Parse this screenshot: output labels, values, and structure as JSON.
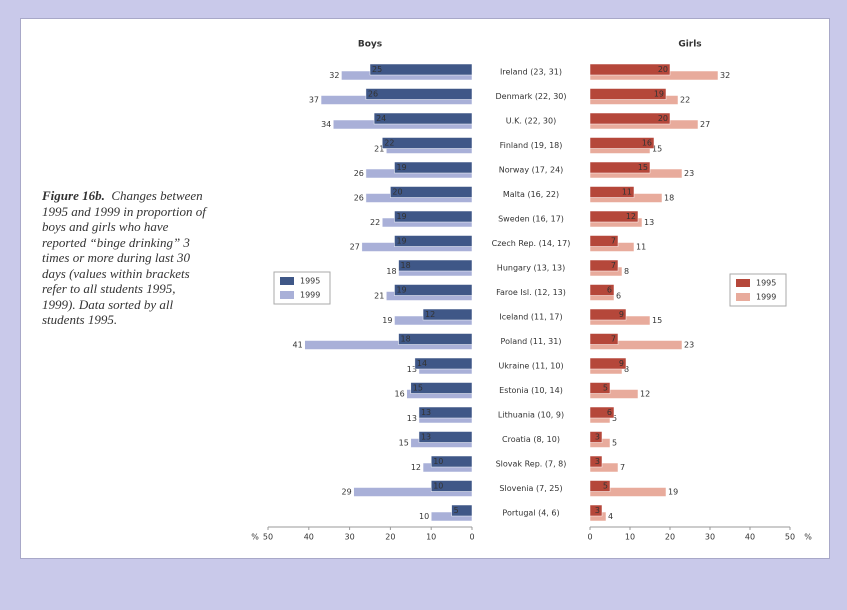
{
  "chart_data": {
    "type": "butterfly_bar",
    "caption_lead": "Figure 16b.",
    "caption": "Changes between 1995 and 1999 in proportion of boys and girls who have reported “binge drinking” 3 times or more during last 30 days (values within brackets refer to all students 1995, 1999). Data sorted by all students 1995.",
    "unit": "%",
    "categories": [
      "Ireland (23, 31)",
      "Denmark (22, 30)",
      "U.K. (22, 30)",
      "Finland (19, 18)",
      "Norway (17, 24)",
      "Malta (16, 22)",
      "Sweden (16, 17)",
      "Czech Rep. (14, 17)",
      "Hungary (13, 13)",
      "Faroe Isl. (12, 13)",
      "Iceland (11, 17)",
      "Poland (11, 31)",
      "Ukraine (11, 10)",
      "Estonia (10, 14)",
      "Lithuania (10, 9)",
      "Croatia (8, 10)",
      "Slovak Rep. (7, 8)",
      "Slovenia (7, 25)",
      "Portugal (4, 6)"
    ],
    "left": {
      "title": "Boys",
      "xlim": [
        0,
        50
      ],
      "xticks": [
        0,
        10,
        20,
        30,
        40,
        50
      ],
      "series": [
        {
          "name": "1995",
          "color": "#3f5787",
          "values": [
            25,
            26,
            24,
            22,
            19,
            20,
            19,
            19,
            18,
            19,
            12,
            18,
            14,
            15,
            13,
            13,
            10,
            10,
            5
          ]
        },
        {
          "name": "1999",
          "color": "#a9b0d8",
          "values": [
            32,
            37,
            34,
            21,
            26,
            26,
            22,
            27,
            18,
            21,
            19,
            41,
            13,
            16,
            13,
            15,
            12,
            29,
            10
          ]
        }
      ]
    },
    "right": {
      "title": "Girls",
      "xlim": [
        0,
        50
      ],
      "xticks": [
        0,
        10,
        20,
        30,
        40,
        50
      ],
      "series": [
        {
          "name": "1995",
          "color": "#b5473a",
          "values": [
            20,
            19,
            20,
            16,
            15,
            11,
            12,
            7,
            7,
            6,
            9,
            7,
            9,
            5,
            6,
            3,
            3,
            5,
            3
          ]
        },
        {
          "name": "1999",
          "color": "#e8ab9c",
          "values": [
            32,
            22,
            27,
            15,
            23,
            18,
            13,
            11,
            8,
            6,
            15,
            23,
            8,
            12,
            5,
            5,
            7,
            19,
            4
          ]
        }
      ]
    }
  }
}
